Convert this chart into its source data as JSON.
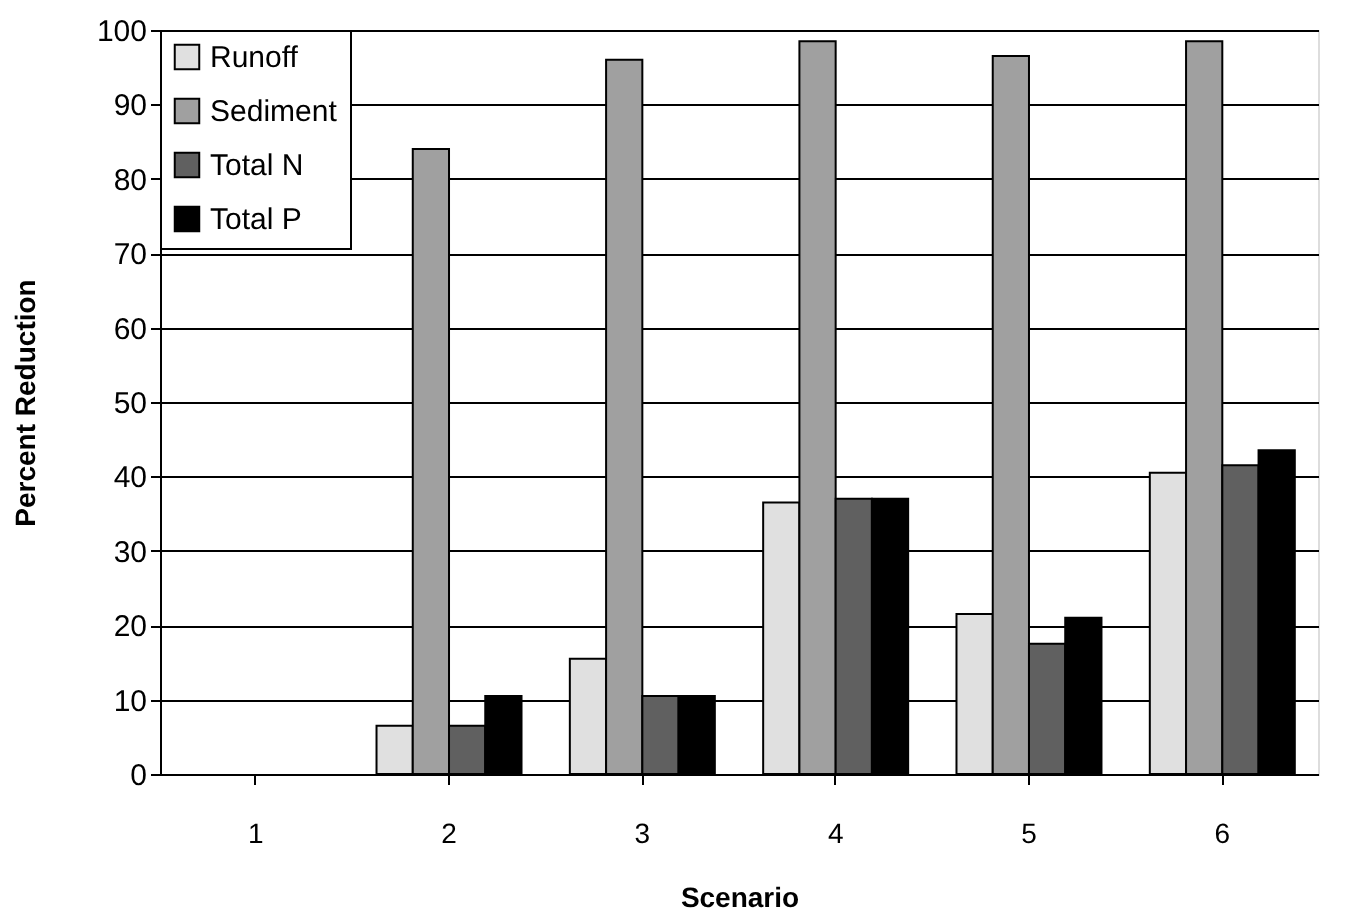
{
  "chart_data": {
    "type": "bar",
    "xlabel": "Scenario",
    "ylabel": "Percent Reduction",
    "categories": [
      "1",
      "2",
      "3",
      "4",
      "5",
      "6"
    ],
    "series": [
      {
        "name": "Runoff",
        "color": "#e0e0e0",
        "values": [
          null,
          6.5,
          15.5,
          36.5,
          21.5,
          40.5
        ]
      },
      {
        "name": "Sediment",
        "color": "#a0a0a0",
        "values": [
          null,
          84,
          96,
          98.5,
          96.5,
          98.5
        ]
      },
      {
        "name": "Total N",
        "color": "#606060",
        "values": [
          null,
          6.5,
          10.5,
          37,
          17.5,
          41.5
        ]
      },
      {
        "name": "Total P",
        "color": "#000000",
        "values": [
          null,
          10.5,
          10.5,
          37,
          21,
          43.5
        ]
      }
    ],
    "ylim": [
      0,
      100
    ],
    "yticks": [
      0,
      10,
      20,
      30,
      40,
      50,
      60,
      70,
      80,
      90,
      100
    ],
    "grid": "y",
    "legend": "top left"
  }
}
